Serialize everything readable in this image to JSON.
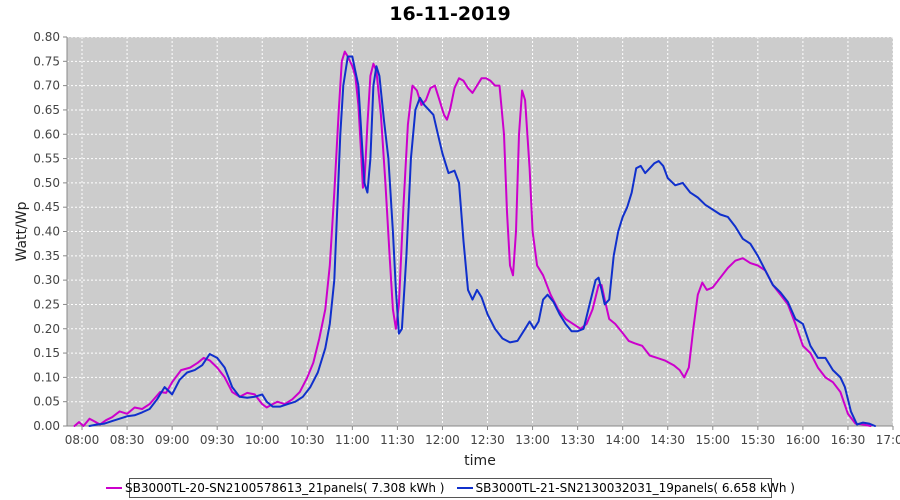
{
  "chart_data": {
    "type": "line",
    "title": "16-11-2019",
    "xlabel": "time",
    "ylabel": "Watt/Wp",
    "x_unit": "time of day (HH:MM)",
    "xlim": [
      "07:50",
      "17:00"
    ],
    "ylim": [
      0,
      0.8
    ],
    "x_ticks": [
      "08:00",
      "08:30",
      "09:00",
      "09:30",
      "10:00",
      "10:30",
      "11:00",
      "11:30",
      "12:00",
      "12:30",
      "13:00",
      "13:30",
      "14:00",
      "14:30",
      "15:00",
      "15:30",
      "16:00",
      "16:30",
      "17:00"
    ],
    "y_ticks": [
      "0.00",
      "0.05",
      "0.10",
      "0.15",
      "0.20",
      "0.25",
      "0.30",
      "0.35",
      "0.40",
      "0.45",
      "0.50",
      "0.55",
      "0.60",
      "0.65",
      "0.70",
      "0.75",
      "0.80"
    ],
    "grid": true,
    "background": "#cccccc",
    "legend_position": "bottom",
    "series": [
      {
        "name": "SB3000TL-20-SN2100578613_21panels( 7.308 kWh )",
        "color": "#cc00cc",
        "points": [
          [
            "07:55",
            0.0
          ],
          [
            "07:58",
            0.008
          ],
          [
            "08:01",
            0.0
          ],
          [
            "08:05",
            0.015
          ],
          [
            "08:08",
            0.01
          ],
          [
            "08:12",
            0.003
          ],
          [
            "08:16",
            0.012
          ],
          [
            "08:20",
            0.018
          ],
          [
            "08:25",
            0.03
          ],
          [
            "08:30",
            0.025
          ],
          [
            "08:35",
            0.038
          ],
          [
            "08:40",
            0.035
          ],
          [
            "08:45",
            0.045
          ],
          [
            "08:52",
            0.07
          ],
          [
            "08:56",
            0.068
          ],
          [
            "09:00",
            0.09
          ],
          [
            "09:06",
            0.115
          ],
          [
            "09:12",
            0.12
          ],
          [
            "09:17",
            0.13
          ],
          [
            "09:21",
            0.14
          ],
          [
            "09:25",
            0.135
          ],
          [
            "09:30",
            0.12
          ],
          [
            "09:35",
            0.1
          ],
          [
            "09:40",
            0.07
          ],
          [
            "09:45",
            0.06
          ],
          [
            "09:50",
            0.068
          ],
          [
            "09:55",
            0.065
          ],
          [
            "10:00",
            0.045
          ],
          [
            "10:03",
            0.038
          ],
          [
            "10:07",
            0.045
          ],
          [
            "10:10",
            0.05
          ],
          [
            "10:15",
            0.045
          ],
          [
            "10:20",
            0.055
          ],
          [
            "10:25",
            0.07
          ],
          [
            "10:30",
            0.1
          ],
          [
            "10:34",
            0.13
          ],
          [
            "10:38",
            0.18
          ],
          [
            "10:42",
            0.24
          ],
          [
            "10:45",
            0.33
          ],
          [
            "10:48",
            0.48
          ],
          [
            "10:51",
            0.65
          ],
          [
            "10:53",
            0.75
          ],
          [
            "10:55",
            0.77
          ],
          [
            "10:57",
            0.76
          ],
          [
            "11:00",
            0.74
          ],
          [
            "11:02",
            0.72
          ],
          [
            "11:04",
            0.66
          ],
          [
            "11:06",
            0.55
          ],
          [
            "11:07",
            0.49
          ],
          [
            "11:08",
            0.5
          ],
          [
            "11:10",
            0.62
          ],
          [
            "11:12",
            0.72
          ],
          [
            "11:14",
            0.745
          ],
          [
            "11:16",
            0.73
          ],
          [
            "11:19",
            0.64
          ],
          [
            "11:22",
            0.5
          ],
          [
            "11:25",
            0.34
          ],
          [
            "11:27",
            0.24
          ],
          [
            "11:29",
            0.2
          ],
          [
            "11:31",
            0.25
          ],
          [
            "11:34",
            0.45
          ],
          [
            "11:37",
            0.62
          ],
          [
            "11:40",
            0.7
          ],
          [
            "11:43",
            0.69
          ],
          [
            "11:46",
            0.66
          ],
          [
            "11:49",
            0.67
          ],
          [
            "11:52",
            0.695
          ],
          [
            "11:55",
            0.7
          ],
          [
            "11:58",
            0.67
          ],
          [
            "12:01",
            0.64
          ],
          [
            "12:03",
            0.63
          ],
          [
            "12:05",
            0.65
          ],
          [
            "12:08",
            0.695
          ],
          [
            "12:11",
            0.715
          ],
          [
            "12:14",
            0.71
          ],
          [
            "12:17",
            0.695
          ],
          [
            "12:20",
            0.685
          ],
          [
            "12:23",
            0.7
          ],
          [
            "12:26",
            0.715
          ],
          [
            "12:29",
            0.715
          ],
          [
            "12:32",
            0.71
          ],
          [
            "12:35",
            0.7
          ],
          [
            "12:38",
            0.7
          ],
          [
            "12:41",
            0.6
          ],
          [
            "12:43",
            0.44
          ],
          [
            "12:45",
            0.33
          ],
          [
            "12:47",
            0.31
          ],
          [
            "12:49",
            0.4
          ],
          [
            "12:51",
            0.6
          ],
          [
            "12:53",
            0.69
          ],
          [
            "12:55",
            0.67
          ],
          [
            "12:58",
            0.53
          ],
          [
            "13:00",
            0.4
          ],
          [
            "13:03",
            0.33
          ],
          [
            "13:07",
            0.31
          ],
          [
            "13:12",
            0.27
          ],
          [
            "13:17",
            0.24
          ],
          [
            "13:22",
            0.22
          ],
          [
            "13:27",
            0.21
          ],
          [
            "13:32",
            0.2
          ],
          [
            "13:36",
            0.21
          ],
          [
            "13:40",
            0.24
          ],
          [
            "13:44",
            0.29
          ],
          [
            "13:46",
            0.29
          ],
          [
            "13:48",
            0.26
          ],
          [
            "13:51",
            0.22
          ],
          [
            "13:55",
            0.21
          ],
          [
            "13:59",
            0.195
          ],
          [
            "14:04",
            0.175
          ],
          [
            "14:08",
            0.17
          ],
          [
            "14:13",
            0.165
          ],
          [
            "14:18",
            0.145
          ],
          [
            "14:23",
            0.14
          ],
          [
            "14:28",
            0.135
          ],
          [
            "14:34",
            0.125
          ],
          [
            "14:38",
            0.115
          ],
          [
            "14:41",
            0.1
          ],
          [
            "14:44",
            0.12
          ],
          [
            "14:47",
            0.2
          ],
          [
            "14:50",
            0.27
          ],
          [
            "14:53",
            0.295
          ],
          [
            "14:56",
            0.28
          ],
          [
            "15:00",
            0.285
          ],
          [
            "15:05",
            0.305
          ],
          [
            "15:10",
            0.325
          ],
          [
            "15:15",
            0.34
          ],
          [
            "15:20",
            0.345
          ],
          [
            "15:25",
            0.335
          ],
          [
            "15:30",
            0.33
          ],
          [
            "15:35",
            0.32
          ],
          [
            "15:40",
            0.29
          ],
          [
            "15:45",
            0.27
          ],
          [
            "15:50",
            0.25
          ],
          [
            "15:55",
            0.21
          ],
          [
            "16:00",
            0.165
          ],
          [
            "16:05",
            0.15
          ],
          [
            "16:10",
            0.12
          ],
          [
            "16:15",
            0.1
          ],
          [
            "16:20",
            0.09
          ],
          [
            "16:25",
            0.07
          ],
          [
            "16:30",
            0.025
          ],
          [
            "16:35",
            0.005
          ],
          [
            "16:40",
            0.003
          ],
          [
            "16:45",
            0.0
          ]
        ]
      },
      {
        "name": "SB3000TL-21-SN2130032031_19panels( 6.658 kWh )",
        "color": "#1030cc",
        "points": [
          [
            "08:05",
            0.0
          ],
          [
            "08:10",
            0.003
          ],
          [
            "08:15",
            0.005
          ],
          [
            "08:20",
            0.01
          ],
          [
            "08:25",
            0.015
          ],
          [
            "08:30",
            0.02
          ],
          [
            "08:35",
            0.022
          ],
          [
            "08:40",
            0.028
          ],
          [
            "08:45",
            0.035
          ],
          [
            "08:50",
            0.055
          ],
          [
            "08:55",
            0.08
          ],
          [
            "09:00",
            0.065
          ],
          [
            "09:05",
            0.095
          ],
          [
            "09:10",
            0.11
          ],
          [
            "09:15",
            0.115
          ],
          [
            "09:20",
            0.125
          ],
          [
            "09:25",
            0.148
          ],
          [
            "09:30",
            0.14
          ],
          [
            "09:35",
            0.12
          ],
          [
            "09:40",
            0.08
          ],
          [
            "09:45",
            0.06
          ],
          [
            "09:50",
            0.058
          ],
          [
            "09:55",
            0.06
          ],
          [
            "10:00",
            0.065
          ],
          [
            "10:03",
            0.05
          ],
          [
            "10:07",
            0.04
          ],
          [
            "10:12",
            0.04
          ],
          [
            "10:17",
            0.045
          ],
          [
            "10:22",
            0.05
          ],
          [
            "10:27",
            0.06
          ],
          [
            "10:32",
            0.08
          ],
          [
            "10:37",
            0.11
          ],
          [
            "10:42",
            0.16
          ],
          [
            "10:45",
            0.21
          ],
          [
            "10:48",
            0.3
          ],
          [
            "10:50",
            0.45
          ],
          [
            "10:52",
            0.6
          ],
          [
            "10:54",
            0.7
          ],
          [
            "10:57",
            0.76
          ],
          [
            "11:00",
            0.76
          ],
          [
            "11:02",
            0.73
          ],
          [
            "11:04",
            0.7
          ],
          [
            "11:06",
            0.6
          ],
          [
            "11:08",
            0.5
          ],
          [
            "11:10",
            0.48
          ],
          [
            "11:12",
            0.55
          ],
          [
            "11:14",
            0.7
          ],
          [
            "11:16",
            0.74
          ],
          [
            "11:18",
            0.72
          ],
          [
            "11:21",
            0.63
          ],
          [
            "11:24",
            0.55
          ],
          [
            "11:27",
            0.4
          ],
          [
            "11:29",
            0.28
          ],
          [
            "11:31",
            0.19
          ],
          [
            "11:33",
            0.2
          ],
          [
            "11:36",
            0.35
          ],
          [
            "11:39",
            0.55
          ],
          [
            "11:42",
            0.65
          ],
          [
            "11:45",
            0.675
          ],
          [
            "11:48",
            0.66
          ],
          [
            "11:51",
            0.65
          ],
          [
            "11:54",
            0.64
          ],
          [
            "11:57",
            0.6
          ],
          [
            "12:00",
            0.56
          ],
          [
            "12:04",
            0.52
          ],
          [
            "12:08",
            0.525
          ],
          [
            "12:11",
            0.5
          ],
          [
            "12:14",
            0.38
          ],
          [
            "12:17",
            0.28
          ],
          [
            "12:20",
            0.26
          ],
          [
            "12:23",
            0.28
          ],
          [
            "12:26",
            0.265
          ],
          [
            "12:30",
            0.23
          ],
          [
            "12:35",
            0.2
          ],
          [
            "12:40",
            0.18
          ],
          [
            "12:45",
            0.172
          ],
          [
            "12:50",
            0.175
          ],
          [
            "12:55",
            0.2
          ],
          [
            "12:58",
            0.215
          ],
          [
            "13:01",
            0.2
          ],
          [
            "13:04",
            0.215
          ],
          [
            "13:07",
            0.26
          ],
          [
            "13:10",
            0.27
          ],
          [
            "13:14",
            0.255
          ],
          [
            "13:18",
            0.23
          ],
          [
            "13:22",
            0.21
          ],
          [
            "13:26",
            0.195
          ],
          [
            "13:30",
            0.195
          ],
          [
            "13:34",
            0.2
          ],
          [
            "13:38",
            0.25
          ],
          [
            "13:42",
            0.3
          ],
          [
            "13:44",
            0.305
          ],
          [
            "13:46",
            0.28
          ],
          [
            "13:48",
            0.25
          ],
          [
            "13:51",
            0.26
          ],
          [
            "13:54",
            0.35
          ],
          [
            "13:57",
            0.4
          ],
          [
            "14:00",
            0.43
          ],
          [
            "14:03",
            0.45
          ],
          [
            "14:06",
            0.48
          ],
          [
            "14:09",
            0.53
          ],
          [
            "14:12",
            0.535
          ],
          [
            "14:15",
            0.52
          ],
          [
            "14:18",
            0.53
          ],
          [
            "14:21",
            0.54
          ],
          [
            "14:24",
            0.545
          ],
          [
            "14:27",
            0.535
          ],
          [
            "14:30",
            0.51
          ],
          [
            "14:35",
            0.495
          ],
          [
            "14:40",
            0.5
          ],
          [
            "14:45",
            0.48
          ],
          [
            "14:50",
            0.47
          ],
          [
            "14:55",
            0.455
          ],
          [
            "15:00",
            0.445
          ],
          [
            "15:05",
            0.435
          ],
          [
            "15:10",
            0.43
          ],
          [
            "15:15",
            0.41
          ],
          [
            "15:20",
            0.385
          ],
          [
            "15:25",
            0.375
          ],
          [
            "15:30",
            0.35
          ],
          [
            "15:35",
            0.32
          ],
          [
            "15:40",
            0.29
          ],
          [
            "15:45",
            0.275
          ],
          [
            "15:50",
            0.255
          ],
          [
            "15:55",
            0.22
          ],
          [
            "16:00",
            0.21
          ],
          [
            "16:05",
            0.165
          ],
          [
            "16:10",
            0.14
          ],
          [
            "16:15",
            0.14
          ],
          [
            "16:20",
            0.115
          ],
          [
            "16:25",
            0.1
          ],
          [
            "16:28",
            0.08
          ],
          [
            "16:32",
            0.03
          ],
          [
            "16:36",
            0.003
          ],
          [
            "16:40",
            0.007
          ],
          [
            "16:44",
            0.005
          ],
          [
            "16:48",
            0.0
          ]
        ]
      }
    ]
  }
}
